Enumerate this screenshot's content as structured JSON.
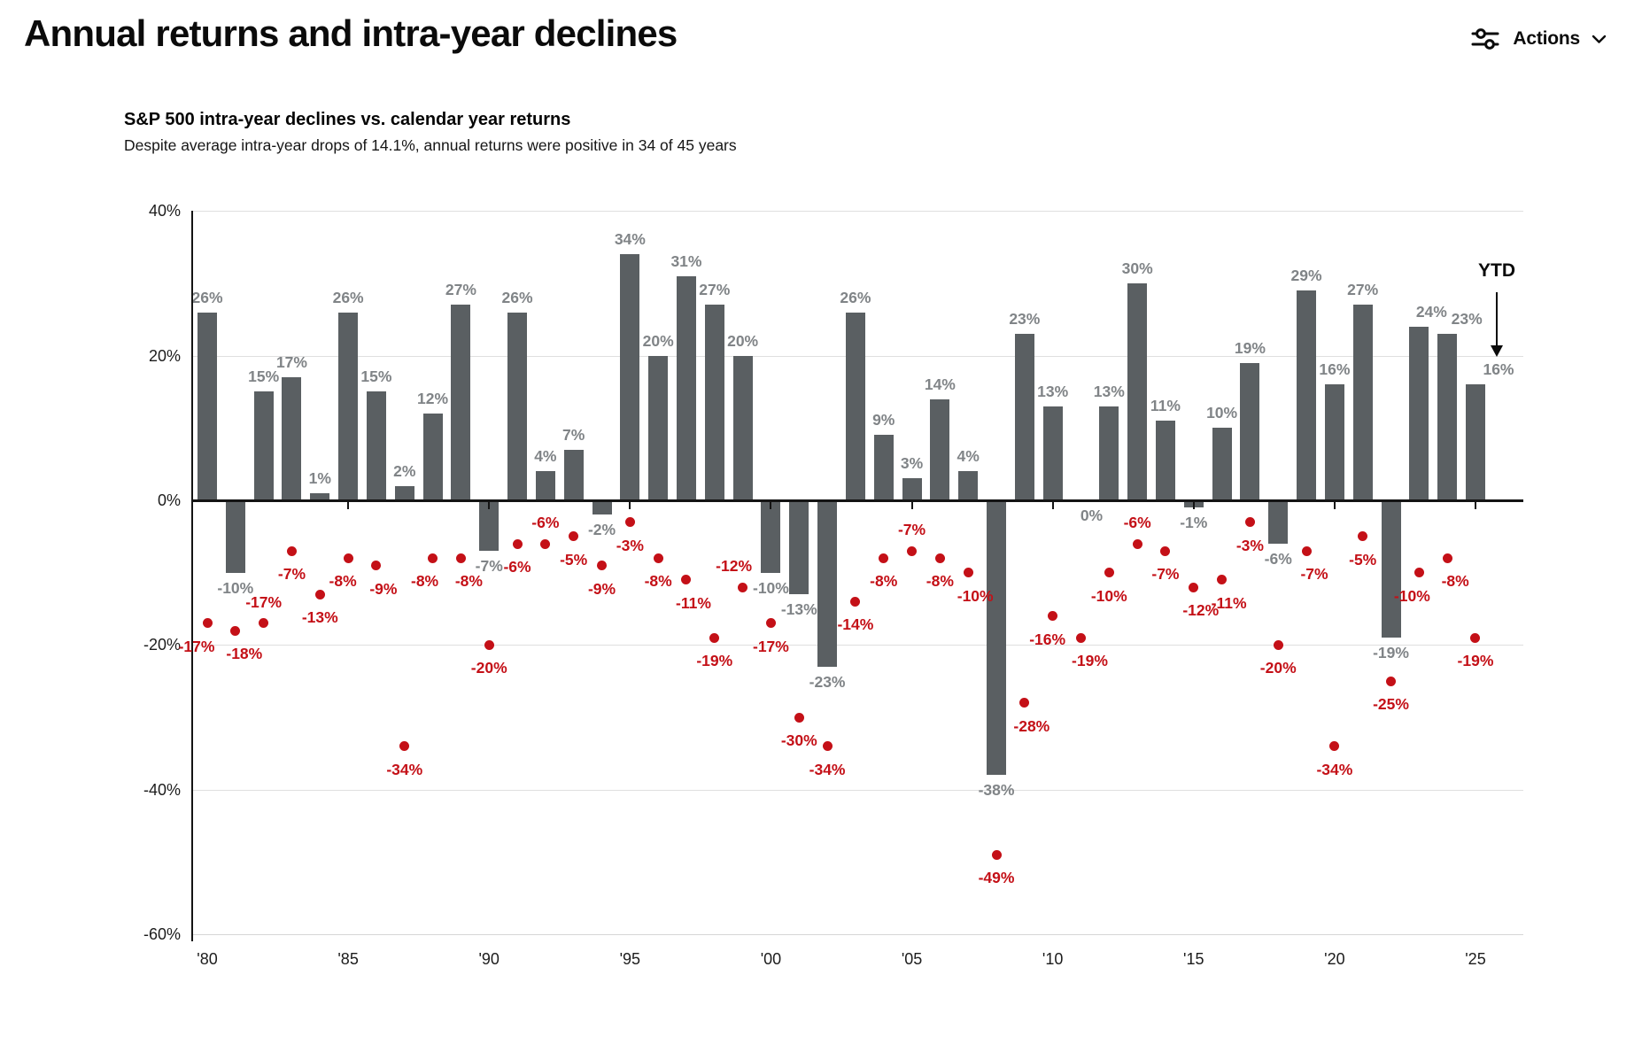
{
  "page": {
    "title": "Annual returns and intra-year declines"
  },
  "toolbar": {
    "actions_label": "Actions",
    "icons": [
      "filter-sliders-icon",
      "chevron-down-icon"
    ]
  },
  "chart_data": {
    "type": "bar+scatter",
    "title": "S&P 500 intra-year declines vs. calendar year returns",
    "subtitle": "Despite average intra-year drops of 14.1%, annual returns were positive in 34 of 45 years",
    "years": [
      1980,
      1981,
      1982,
      1983,
      1984,
      1985,
      1986,
      1987,
      1988,
      1989,
      1990,
      1991,
      1992,
      1993,
      1994,
      1995,
      1996,
      1997,
      1998,
      1999,
      2000,
      2001,
      2002,
      2003,
      2004,
      2005,
      2006,
      2007,
      2008,
      2009,
      2010,
      2011,
      2012,
      2013,
      2014,
      2015,
      2016,
      2017,
      2018,
      2019,
      2020,
      2021,
      2022,
      2023,
      2024,
      2025
    ],
    "series": [
      {
        "name": "Calendar year return",
        "style": "bar",
        "color": "#5a5f62",
        "values": [
          26,
          -10,
          15,
          17,
          1,
          26,
          15,
          2,
          12,
          27,
          -7,
          26,
          4,
          7,
          -2,
          34,
          20,
          31,
          27,
          20,
          -10,
          -13,
          -23,
          26,
          9,
          3,
          14,
          4,
          -38,
          23,
          13,
          0,
          13,
          30,
          11,
          -1,
          10,
          19,
          -6,
          29,
          16,
          27,
          -19,
          24,
          23,
          16
        ]
      },
      {
        "name": "Intra-year decline",
        "style": "dot",
        "color": "#c41017",
        "values": [
          -17,
          -18,
          -17,
          -7,
          -13,
          -8,
          -9,
          -34,
          -8,
          -8,
          -20,
          -6,
          -6,
          -5,
          -9,
          -3,
          -8,
          -11,
          -19,
          -12,
          -17,
          -30,
          -34,
          -14,
          -8,
          -7,
          -8,
          -10,
          -49,
          -28,
          -16,
          -19,
          -10,
          -6,
          -7,
          -12,
          -11,
          -3,
          -20,
          -7,
          -34,
          -5,
          -25,
          -10,
          -8,
          -19
        ]
      }
    ],
    "x_tick_labels": [
      "'80",
      "'85",
      "'90",
      "'95",
      "'00",
      "'05",
      "'10",
      "'15",
      "'20",
      "'25"
    ],
    "y_ticks": [
      40,
      20,
      0,
      -20,
      -40,
      -60
    ],
    "ylim": [
      -60,
      40
    ],
    "grid": "horizontal",
    "legend": "none",
    "annotation": {
      "text": "YTD",
      "target_year": 2025
    },
    "layout_hints": {
      "dot_label_above_years": [
        1982,
        1992,
        1999,
        2005,
        2013
      ],
      "dot_label_dx": {
        "1980": -12,
        "1981": 10,
        "1985": -6,
        "1986": 8,
        "1988": -9,
        "1989": 9,
        "1997": 8,
        "1999": -10,
        "2007": 8,
        "2009": 8,
        "2010": -6,
        "2011": 10,
        "2015": 8,
        "2016": 8,
        "2019": 9,
        "2023": -8,
        "2024": 9
      },
      "bar_label_dx": {
        "2011": 12,
        "2023": 14,
        "2024": 22,
        "2025": 26
      }
    }
  }
}
